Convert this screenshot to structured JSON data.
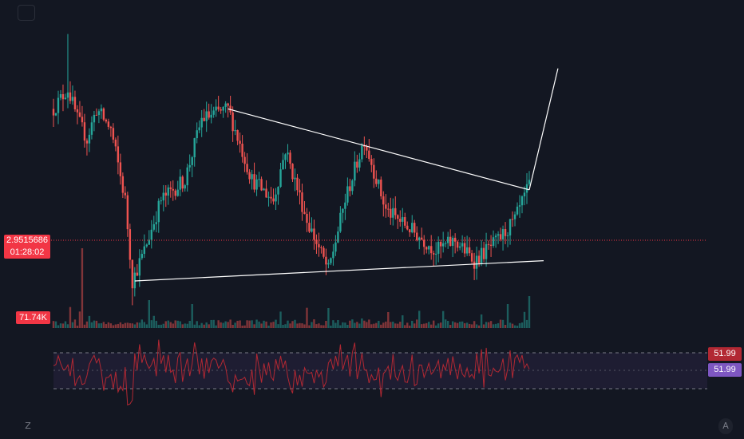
{
  "toolbar": {
    "settings_icon": "square-button-icon"
  },
  "corner": {
    "z_label": "Z",
    "a_label": "A"
  },
  "price_scale": {
    "current_price": "2.9515686",
    "countdown": "01:28:02",
    "volume_label": "71.74K",
    "rsi_value": "51.99",
    "rsi_ma_value": "51.99"
  },
  "colors": {
    "background": "#131722",
    "up": "#26a69a",
    "down": "#ef5350",
    "price_line": "#f23645",
    "trendline": "#ffffff",
    "rsi_line": "#b22833",
    "rsi_band": "#7e57c2"
  },
  "chart_data": {
    "type": "candlestick",
    "candles": {
      "count": 200,
      "start": 2.95,
      "waypoints": [
        [
          0,
          3.35
        ],
        [
          6,
          3.45
        ],
        [
          10,
          3.3
        ],
        [
          14,
          3.2
        ],
        [
          18,
          3.35
        ],
        [
          24,
          3.25
        ],
        [
          30,
          2.9
        ],
        [
          33,
          2.5
        ],
        [
          38,
          2.65
        ],
        [
          45,
          2.9
        ],
        [
          55,
          3.0
        ],
        [
          62,
          3.3
        ],
        [
          73,
          3.35
        ],
        [
          83,
          3.0
        ],
        [
          92,
          2.9
        ],
        [
          97,
          3.15
        ],
        [
          106,
          2.8
        ],
        [
          115,
          2.55
        ],
        [
          122,
          2.9
        ],
        [
          130,
          3.2
        ],
        [
          139,
          2.85
        ],
        [
          150,
          2.75
        ],
        [
          160,
          2.65
        ],
        [
          168,
          2.7
        ],
        [
          176,
          2.6
        ],
        [
          186,
          2.7
        ],
        [
          193,
          2.8
        ],
        [
          199,
          2.97
        ]
      ]
    },
    "volume": {
      "max": 71740,
      "spikes": [
        [
          12,
          1.0
        ],
        [
          40,
          0.35
        ],
        [
          58,
          0.3
        ],
        [
          115,
          0.25
        ],
        [
          140,
          0.2
        ],
        [
          190,
          0.3
        ],
        [
          199,
          0.4
        ]
      ]
    },
    "rsi": {
      "upper": 70,
      "middle": 50,
      "lower": 30,
      "last": 51.99,
      "ma_last": 51.99
    },
    "drawings": [
      {
        "kind": "descending-trendline",
        "from": [
          73,
          3.35
        ],
        "to": [
          199,
          2.95
        ]
      },
      {
        "kind": "ascending-support",
        "from": [
          34,
          2.5
        ],
        "to": [
          205,
          2.6
        ]
      },
      {
        "kind": "projection-line",
        "from": [
          199,
          2.95
        ],
        "to": [
          211,
          3.55
        ]
      }
    ],
    "ylim": [
      2.35,
      3.75
    ]
  }
}
